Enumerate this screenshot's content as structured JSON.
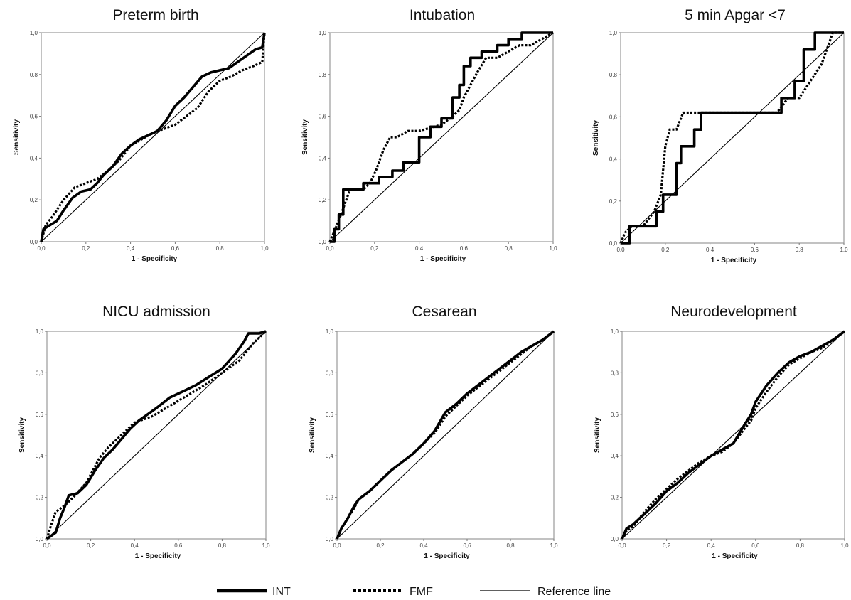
{
  "chart_data": [
    {
      "type": "line",
      "title": "Preterm birth",
      "xlabel": "1 - Specificity",
      "ylabel": "Sensitivity",
      "xlim": [
        0,
        1
      ],
      "ylim": [
        0,
        1
      ],
      "x_ticks": [
        "0,0",
        "0,2",
        "0,4",
        "0,6",
        "0,8",
        "1,0"
      ],
      "y_ticks": [
        "0,0",
        "0,2",
        "0,4",
        "0,6",
        "0,8",
        "1,0"
      ],
      "series": [
        {
          "name": "INT",
          "style": "solid-thick",
          "x": [
            0,
            0.01,
            0.04,
            0.07,
            0.1,
            0.14,
            0.18,
            0.22,
            0.25,
            0.28,
            0.32,
            0.36,
            0.4,
            0.44,
            0.48,
            0.52,
            0.56,
            0.6,
            0.64,
            0.68,
            0.72,
            0.76,
            0.8,
            0.84,
            0.88,
            0.92,
            0.96,
            0.99,
            1.0
          ],
          "y": [
            0,
            0.06,
            0.08,
            0.1,
            0.15,
            0.21,
            0.24,
            0.25,
            0.28,
            0.32,
            0.36,
            0.42,
            0.46,
            0.49,
            0.51,
            0.53,
            0.58,
            0.65,
            0.69,
            0.74,
            0.79,
            0.81,
            0.82,
            0.83,
            0.86,
            0.89,
            0.92,
            0.93,
            1.0
          ]
        },
        {
          "name": "FMF",
          "style": "dotted-thick",
          "x": [
            0,
            0.02,
            0.05,
            0.1,
            0.15,
            0.2,
            0.25,
            0.3,
            0.35,
            0.4,
            0.45,
            0.5,
            0.55,
            0.6,
            0.65,
            0.7,
            0.75,
            0.8,
            0.85,
            0.9,
            0.95,
            0.99,
            1.0
          ],
          "y": [
            0,
            0.08,
            0.12,
            0.2,
            0.26,
            0.28,
            0.3,
            0.34,
            0.39,
            0.46,
            0.49,
            0.52,
            0.54,
            0.56,
            0.6,
            0.64,
            0.72,
            0.77,
            0.79,
            0.82,
            0.84,
            0.86,
            1.0
          ]
        },
        {
          "name": "Reference line",
          "style": "thin",
          "x": [
            0,
            1
          ],
          "y": [
            0,
            1
          ]
        }
      ]
    },
    {
      "type": "line",
      "title": "Intubation",
      "xlabel": "1 - Specificity",
      "ylabel": "Sensitivity",
      "xlim": [
        0,
        1
      ],
      "ylim": [
        0,
        1
      ],
      "x_ticks": [
        "0,0",
        "0,2",
        "0,4",
        "0,6",
        "0,8",
        "1,0"
      ],
      "y_ticks": [
        "0,0",
        "0,2",
        "0,4",
        "0,6",
        "0,8",
        "1,0"
      ],
      "series": [
        {
          "name": "INT",
          "style": "solid-thick",
          "x": [
            0,
            0.02,
            0.02,
            0.04,
            0.04,
            0.06,
            0.06,
            0.15,
            0.15,
            0.22,
            0.22,
            0.28,
            0.28,
            0.33,
            0.33,
            0.4,
            0.4,
            0.45,
            0.45,
            0.5,
            0.5,
            0.55,
            0.55,
            0.58,
            0.58,
            0.6,
            0.6,
            0.63,
            0.63,
            0.68,
            0.68,
            0.75,
            0.75,
            0.8,
            0.8,
            0.86,
            0.86,
            0.93,
            0.93,
            1.0
          ],
          "y": [
            0,
            0,
            0.06,
            0.06,
            0.13,
            0.13,
            0.25,
            0.25,
            0.28,
            0.28,
            0.31,
            0.31,
            0.34,
            0.34,
            0.38,
            0.38,
            0.5,
            0.5,
            0.55,
            0.55,
            0.59,
            0.59,
            0.69,
            0.69,
            0.75,
            0.75,
            0.84,
            0.84,
            0.88,
            0.88,
            0.91,
            0.91,
            0.94,
            0.94,
            0.97,
            0.97,
            1.0,
            1.0,
            1.0,
            1.0
          ]
        },
        {
          "name": "FMF",
          "style": "dotted-thick",
          "x": [
            0,
            0.02,
            0.05,
            0.07,
            0.09,
            0.12,
            0.15,
            0.18,
            0.21,
            0.24,
            0.27,
            0.3,
            0.35,
            0.4,
            0.5,
            0.55,
            0.58,
            0.6,
            0.63,
            0.66,
            0.7,
            0.75,
            0.8,
            0.85,
            0.9,
            0.95,
            1.0
          ],
          "y": [
            0,
            0.05,
            0.13,
            0.19,
            0.25,
            0.25,
            0.25,
            0.28,
            0.35,
            0.44,
            0.5,
            0.5,
            0.53,
            0.53,
            0.56,
            0.6,
            0.63,
            0.69,
            0.75,
            0.81,
            0.88,
            0.88,
            0.91,
            0.94,
            0.94,
            0.97,
            1.0
          ]
        },
        {
          "name": "Reference line",
          "style": "thin",
          "x": [
            0,
            1
          ],
          "y": [
            0,
            1
          ]
        }
      ]
    },
    {
      "type": "line",
      "title": "5 min Apgar <7",
      "xlabel": "1 - Specificity",
      "ylabel": "Sensitivity",
      "xlim": [
        0,
        1
      ],
      "ylim": [
        0,
        1
      ],
      "x_ticks": [
        "0,0",
        "0,2",
        "0,4",
        "0,6",
        "0,8",
        "1,0"
      ],
      "y_ticks": [
        "0,0",
        "0,2",
        "0,4",
        "0,6",
        "0,8",
        "1,0"
      ],
      "series": [
        {
          "name": "INT",
          "style": "solid-thick",
          "x": [
            0,
            0.04,
            0.04,
            0.16,
            0.16,
            0.19,
            0.19,
            0.25,
            0.25,
            0.27,
            0.27,
            0.33,
            0.33,
            0.36,
            0.36,
            0.72,
            0.72,
            0.78,
            0.78,
            0.82,
            0.82,
            0.87,
            0.87,
            0.92,
            0.92,
            1.0
          ],
          "y": [
            0,
            0,
            0.08,
            0.08,
            0.15,
            0.15,
            0.23,
            0.23,
            0.38,
            0.38,
            0.46,
            0.46,
            0.54,
            0.54,
            0.62,
            0.62,
            0.69,
            0.69,
            0.77,
            0.77,
            0.92,
            0.92,
            1.0,
            1.0,
            1.0,
            1.0
          ]
        },
        {
          "name": "FMF",
          "style": "dotted-thick",
          "x": [
            0,
            0.02,
            0.05,
            0.1,
            0.15,
            0.18,
            0.2,
            0.22,
            0.25,
            0.28,
            0.3,
            0.7,
            0.75,
            0.8,
            0.85,
            0.9,
            0.95,
            1.0
          ],
          "y": [
            0,
            0.05,
            0.08,
            0.08,
            0.15,
            0.23,
            0.46,
            0.54,
            0.54,
            0.62,
            0.62,
            0.62,
            0.69,
            0.69,
            0.77,
            0.85,
            1.0,
            1.0
          ]
        },
        {
          "name": "Reference line",
          "style": "thin",
          "x": [
            0,
            1
          ],
          "y": [
            0,
            1
          ]
        }
      ]
    },
    {
      "type": "line",
      "title": "NICU admission",
      "xlabel": "1 - Specificity",
      "ylabel": "Sensitivity",
      "xlim": [
        0,
        1
      ],
      "ylim": [
        0,
        1
      ],
      "x_ticks": [
        "0,0",
        "0,2",
        "0,4",
        "0,6",
        "0,8",
        "1,0"
      ],
      "y_ticks": [
        "0,0",
        "0,2",
        "0,4",
        "0,6",
        "0,8",
        "1,0"
      ],
      "series": [
        {
          "name": "INT",
          "style": "solid-thick",
          "x": [
            0,
            0.04,
            0.06,
            0.08,
            0.1,
            0.14,
            0.18,
            0.22,
            0.26,
            0.3,
            0.34,
            0.38,
            0.42,
            0.46,
            0.5,
            0.56,
            0.62,
            0.68,
            0.74,
            0.8,
            0.86,
            0.9,
            0.92,
            0.94,
            0.97,
            1.0
          ],
          "y": [
            0,
            0.03,
            0.1,
            0.15,
            0.21,
            0.22,
            0.26,
            0.33,
            0.39,
            0.43,
            0.48,
            0.53,
            0.57,
            0.6,
            0.63,
            0.68,
            0.71,
            0.74,
            0.78,
            0.82,
            0.89,
            0.95,
            0.99,
            0.99,
            0.99,
            1.0
          ]
        },
        {
          "name": "FMF",
          "style": "dotted-thick",
          "x": [
            0,
            0.02,
            0.04,
            0.08,
            0.12,
            0.18,
            0.24,
            0.28,
            0.34,
            0.4,
            0.48,
            0.56,
            0.64,
            0.72,
            0.8,
            0.88,
            0.94,
            1.0
          ],
          "y": [
            0,
            0.07,
            0.13,
            0.16,
            0.2,
            0.27,
            0.39,
            0.44,
            0.5,
            0.56,
            0.59,
            0.64,
            0.69,
            0.74,
            0.8,
            0.86,
            0.94,
            1.0
          ]
        },
        {
          "name": "Reference line",
          "style": "thin",
          "x": [
            0,
            1
          ],
          "y": [
            0,
            1
          ]
        }
      ]
    },
    {
      "type": "line",
      "title": "Cesarean",
      "xlabel": "1 - Specificity",
      "ylabel": "Sensitivity",
      "xlim": [
        0,
        1
      ],
      "ylim": [
        0,
        1
      ],
      "x_ticks": [
        "0,0",
        "0,2",
        "0,4",
        "0,6",
        "0,8",
        "1,0"
      ],
      "y_ticks": [
        "0,0",
        "0,2",
        "0,4",
        "0,6",
        "0,8",
        "1,0"
      ],
      "series": [
        {
          "name": "INT",
          "style": "solid-thick",
          "x": [
            0,
            0.02,
            0.05,
            0.08,
            0.1,
            0.15,
            0.2,
            0.25,
            0.3,
            0.35,
            0.4,
            0.45,
            0.5,
            0.55,
            0.6,
            0.65,
            0.7,
            0.75,
            0.8,
            0.85,
            0.9,
            0.95,
            1.0
          ],
          "y": [
            0,
            0.05,
            0.1,
            0.16,
            0.19,
            0.23,
            0.28,
            0.33,
            0.37,
            0.41,
            0.46,
            0.52,
            0.61,
            0.65,
            0.7,
            0.74,
            0.78,
            0.82,
            0.86,
            0.9,
            0.93,
            0.96,
            1.0
          ]
        },
        {
          "name": "FMF",
          "style": "dotted-thick",
          "x": [
            0,
            0.02,
            0.05,
            0.08,
            0.1,
            0.15,
            0.2,
            0.25,
            0.3,
            0.35,
            0.4,
            0.45,
            0.5,
            0.55,
            0.6,
            0.65,
            0.7,
            0.75,
            0.8,
            0.85,
            0.9,
            0.95,
            1.0
          ],
          "y": [
            0,
            0.05,
            0.1,
            0.15,
            0.19,
            0.23,
            0.28,
            0.33,
            0.37,
            0.41,
            0.46,
            0.51,
            0.59,
            0.64,
            0.69,
            0.73,
            0.77,
            0.81,
            0.85,
            0.89,
            0.93,
            0.96,
            1.0
          ]
        },
        {
          "name": "Reference line",
          "style": "thin",
          "x": [
            0,
            1
          ],
          "y": [
            0,
            1
          ]
        }
      ]
    },
    {
      "type": "line",
      "title": "Neurodevelopment",
      "xlabel": "1 - Specificity",
      "ylabel": "Sensitivity",
      "xlim": [
        0,
        1
      ],
      "ylim": [
        0,
        1
      ],
      "x_ticks": [
        "0,0",
        "0,2",
        "0,4",
        "0,6",
        "0,8",
        "1,0"
      ],
      "y_ticks": [
        "0,0",
        "0,2",
        "0,4",
        "0,6",
        "0,8",
        "1,0"
      ],
      "series": [
        {
          "name": "INT",
          "style": "solid-thick",
          "x": [
            0,
            0.02,
            0.05,
            0.1,
            0.15,
            0.2,
            0.25,
            0.3,
            0.35,
            0.4,
            0.45,
            0.5,
            0.55,
            0.58,
            0.6,
            0.65,
            0.7,
            0.75,
            0.8,
            0.85,
            0.9,
            0.95,
            1.0
          ],
          "y": [
            0,
            0.05,
            0.07,
            0.12,
            0.17,
            0.23,
            0.27,
            0.32,
            0.36,
            0.4,
            0.43,
            0.46,
            0.55,
            0.6,
            0.66,
            0.74,
            0.8,
            0.85,
            0.88,
            0.9,
            0.93,
            0.96,
            1.0
          ]
        },
        {
          "name": "FMF",
          "style": "dotted-thick",
          "x": [
            0,
            0.02,
            0.05,
            0.1,
            0.15,
            0.2,
            0.25,
            0.3,
            0.35,
            0.4,
            0.45,
            0.5,
            0.55,
            0.58,
            0.6,
            0.65,
            0.7,
            0.75,
            0.8,
            0.85,
            0.9,
            0.95,
            1.0
          ],
          "y": [
            0,
            0.04,
            0.06,
            0.13,
            0.19,
            0.24,
            0.29,
            0.33,
            0.37,
            0.4,
            0.42,
            0.46,
            0.53,
            0.57,
            0.63,
            0.71,
            0.78,
            0.84,
            0.87,
            0.9,
            0.92,
            0.96,
            1.0
          ]
        },
        {
          "name": "Reference line",
          "style": "thin",
          "x": [
            0,
            1
          ],
          "y": [
            0,
            1
          ]
        }
      ]
    }
  ],
  "legend": {
    "placement": "bottom-center",
    "items": [
      {
        "label": "INT",
        "style": "solid-thick"
      },
      {
        "label": "FMF",
        "style": "dotted-thick"
      },
      {
        "label": "Reference line",
        "style": "thin"
      }
    ]
  }
}
